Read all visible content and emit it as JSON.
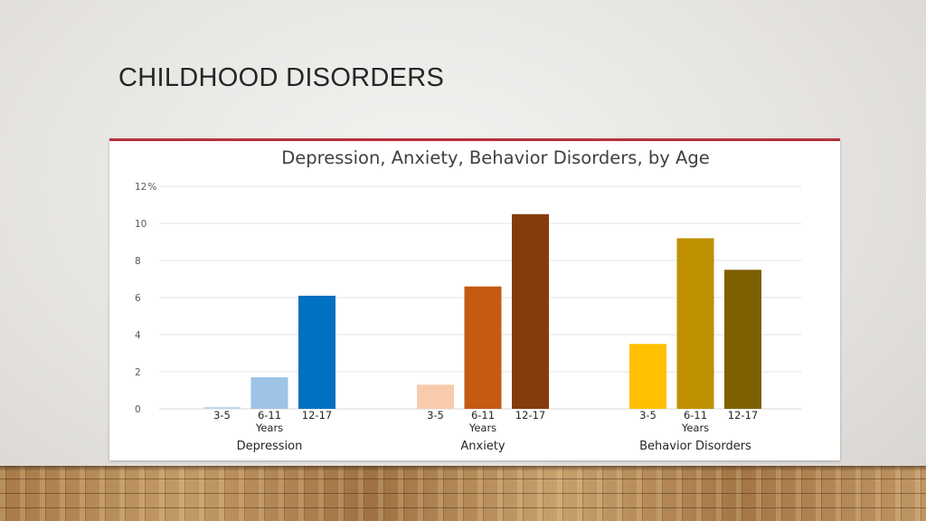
{
  "slide": {
    "title": "CHILDHOOD DISORDERS"
  },
  "colors": {
    "accent_rule": "#b5303f",
    "depression": [
      "#bdd7ee",
      "#9dc3e6",
      "#0070c0"
    ],
    "anxiety": [
      "#f8cbad",
      "#c55a11",
      "#843c0c"
    ],
    "behavior": [
      "#ffc000",
      "#bf9000",
      "#7f6000"
    ]
  },
  "chart_data": {
    "type": "bar",
    "title": "Depression, Anxiety, Behavior Disorders, by Age",
    "ylim": [
      0,
      12
    ],
    "y_ticks": [
      "0",
      "2",
      "4",
      "6",
      "8",
      "10",
      "12"
    ],
    "y_unit_label": "%",
    "grid": true,
    "age_categories": [
      "3-5",
      "6-11",
      "12-17"
    ],
    "age_axis_label": "Years",
    "groups": [
      {
        "name": "Depression",
        "values": [
          0.1,
          1.7,
          6.1
        ]
      },
      {
        "name": "Anxiety",
        "values": [
          1.3,
          6.6,
          10.5
        ]
      },
      {
        "name": "Behavior Disorders",
        "values": [
          3.5,
          9.2,
          7.5
        ]
      }
    ]
  }
}
